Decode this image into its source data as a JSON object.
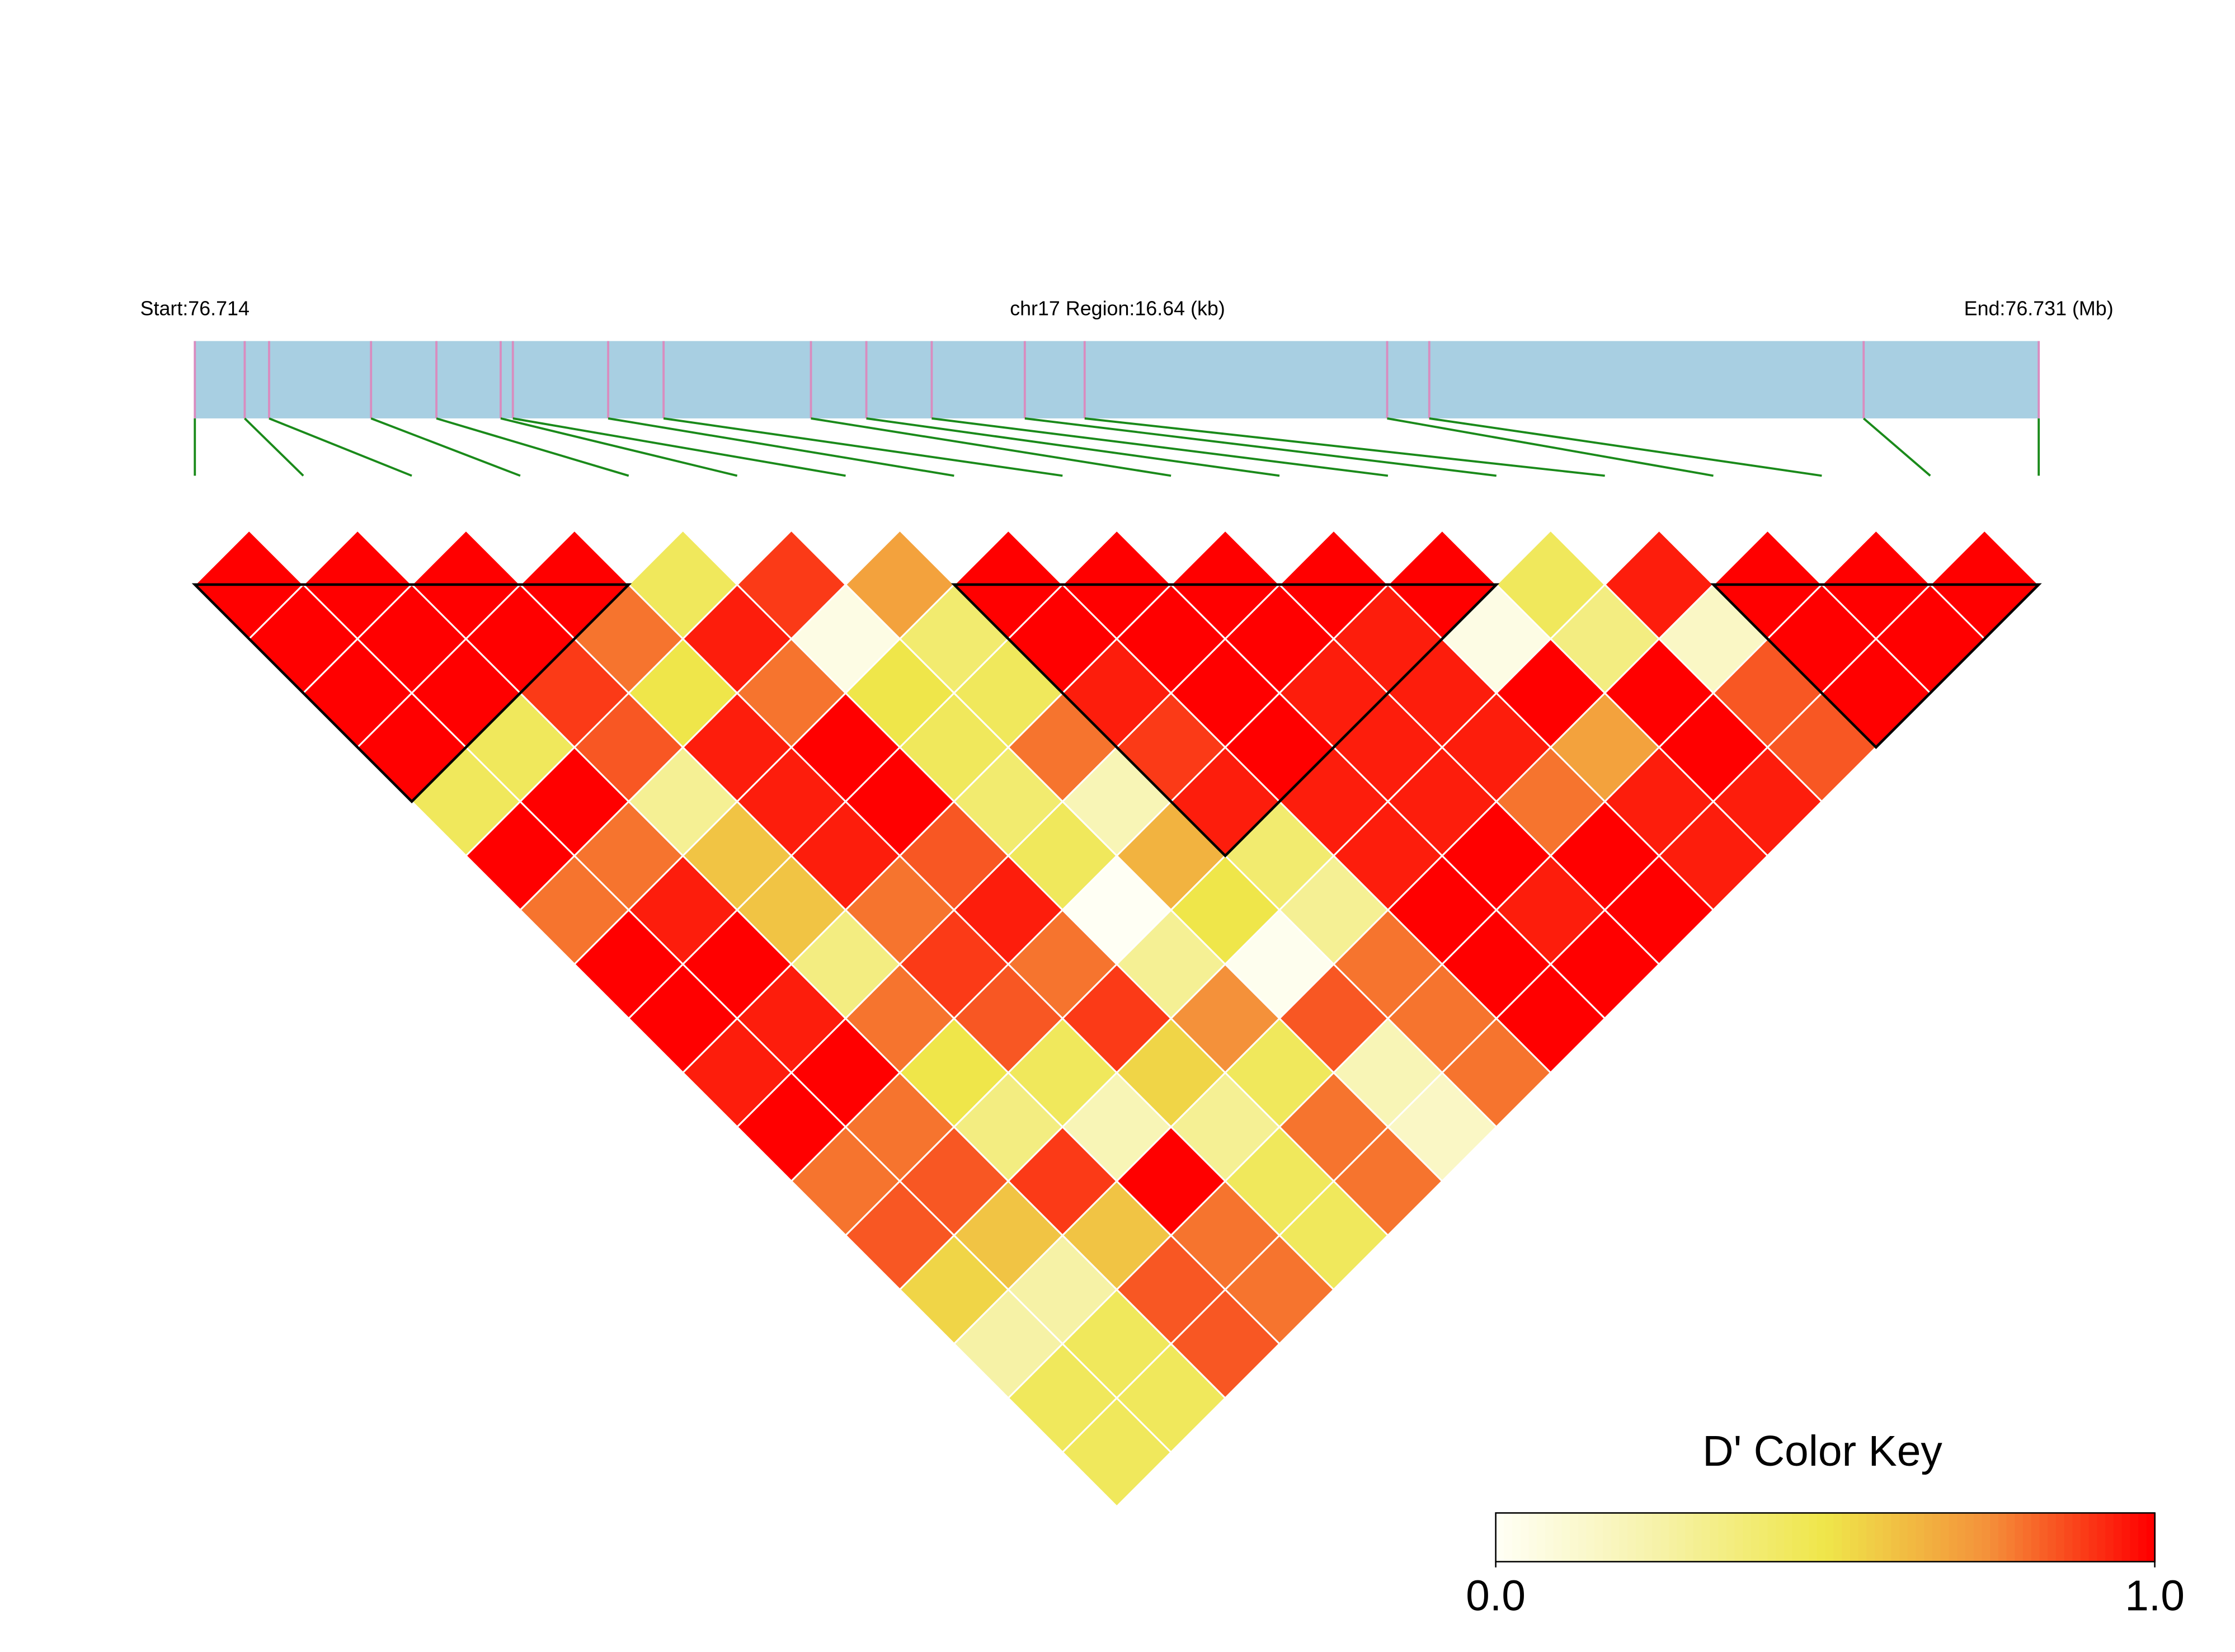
{
  "chart_data": {
    "type": "ld_heatmap",
    "start_label": "Start:76.714",
    "region_label": "chr17 Region:16.64 (kb)",
    "end_label": "End:76.731 (Mb)",
    "xlim": [
      0,
      16.64
    ],
    "snp_positions": [
      0,
      0.45,
      0.67,
      1.59,
      2.18,
      2.76,
      2.87,
      3.73,
      4.23,
      5.56,
      6.06,
      6.65,
      7.49,
      8.03,
      10.76,
      11.14,
      15.06,
      16.64
    ],
    "bar_color": "#a8cfe2",
    "snp_line_color": "#d98cbf",
    "connector_color": "#1a8a1a",
    "block_color": "#000000",
    "blocks": [
      [
        0,
        4
      ],
      [
        7,
        12
      ],
      [
        14,
        17
      ]
    ],
    "rows": [
      [
        1,
        1,
        1,
        1,
        0.45,
        1,
        0.8,
        1,
        1,
        0.95,
        1,
        0.8,
        0.85,
        0.55,
        0.25,
        0.45,
        0.45
      ],
      [
        1,
        1,
        1,
        0.45,
        1,
        0.8,
        0.95,
        1,
        0.95,
        1,
        0.8,
        0.85,
        0.6,
        0.25,
        0.45,
        0.45
      ],
      [
        1,
        1,
        0.9,
        0.85,
        0.3,
        0.6,
        0.6,
        0.35,
        0.8,
        0.5,
        0.35,
        0.9,
        0.6,
        0.85,
        0.85
      ],
      [
        1,
        0.8,
        0.5,
        0.95,
        0.95,
        0.95,
        0.8,
        0.9,
        0.85,
        0.45,
        0.2,
        1,
        0.8,
        0.8
      ],
      [
        0.45,
        0.95,
        0.8,
        1,
        1,
        0.85,
        0.95,
        0.8,
        0.9,
        0.55,
        0.3,
        0.45,
        0.45
      ],
      [
        0.9,
        0.05,
        0.5,
        0.45,
        0.4,
        0.45,
        0,
        0.3,
        0.75,
        0.45,
        0.8,
        0.8
      ],
      [
        0.7,
        0.4,
        0.45,
        0.8,
        0.2,
        0.65,
        0.5,
        0.02,
        0.85,
        0.2,
        0.15
      ],
      [
        1,
        1,
        0.95,
        0.9,
        0.95,
        0.4,
        0.3,
        0.8,
        0.8,
        0.8
      ],
      [
        1,
        1,
        1,
        1,
        0.95,
        0.95,
        1,
        1,
        1
      ],
      [
        1,
        1,
        0.95,
        0.95,
        0.95,
        1,
        0.95,
        1
      ],
      [
        1,
        0.95,
        0.95,
        0.95,
        0.8,
        1,
        1
      ],
      [
        1,
        0.05,
        1,
        0.7,
        0.95,
        0.95
      ],
      [
        0.45,
        0.35,
        1,
        1,
        0.95
      ],
      [
        0.95,
        0.15,
        0.85,
        0.85
      ],
      [
        1,
        1,
        1
      ],
      [
        1,
        1
      ],
      [
        1
      ]
    ],
    "colorscale": [
      "#fffff4",
      "#f6f2a6",
      "#efe64a",
      "#f4913a",
      "#ff0000"
    ],
    "key_title": "D' Color Key",
    "key_ticks": [
      {
        "value": 0,
        "label": "0.0"
      },
      {
        "value": 1,
        "label": "1.0"
      }
    ]
  }
}
